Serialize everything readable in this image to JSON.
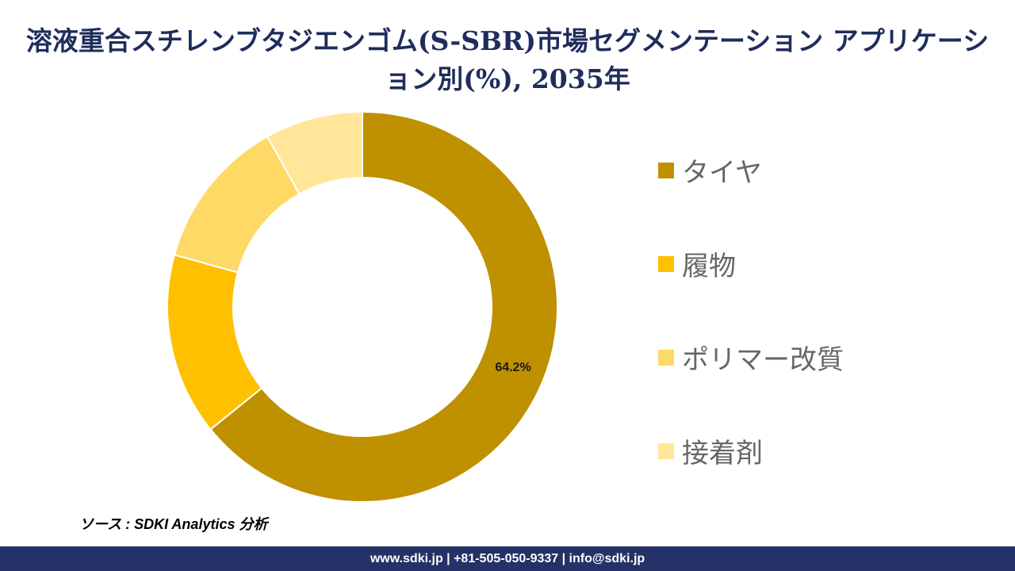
{
  "chart_data": {
    "type": "pie",
    "donut": true,
    "title": "溶液重合スチレンブタジエンゴム(S-SBR)市場セグメンテーション アプリケーション別(%), 2035年",
    "categories": [
      "タイヤ",
      "履物",
      "ポリマー改質",
      "接着剤"
    ],
    "values": [
      64.2,
      15.1,
      12.6,
      8.1
    ],
    "colors": [
      "#BF9000",
      "#FFC000",
      "#FFD966",
      "#FFE699"
    ],
    "data_labels": [
      "64.2%",
      "",
      "",
      ""
    ],
    "legend_position": "right"
  },
  "source": "ソース : SDKI Analytics 分析",
  "footer": "www.sdki.jp | +81-505-050-9337 | info@sdki.jp"
}
